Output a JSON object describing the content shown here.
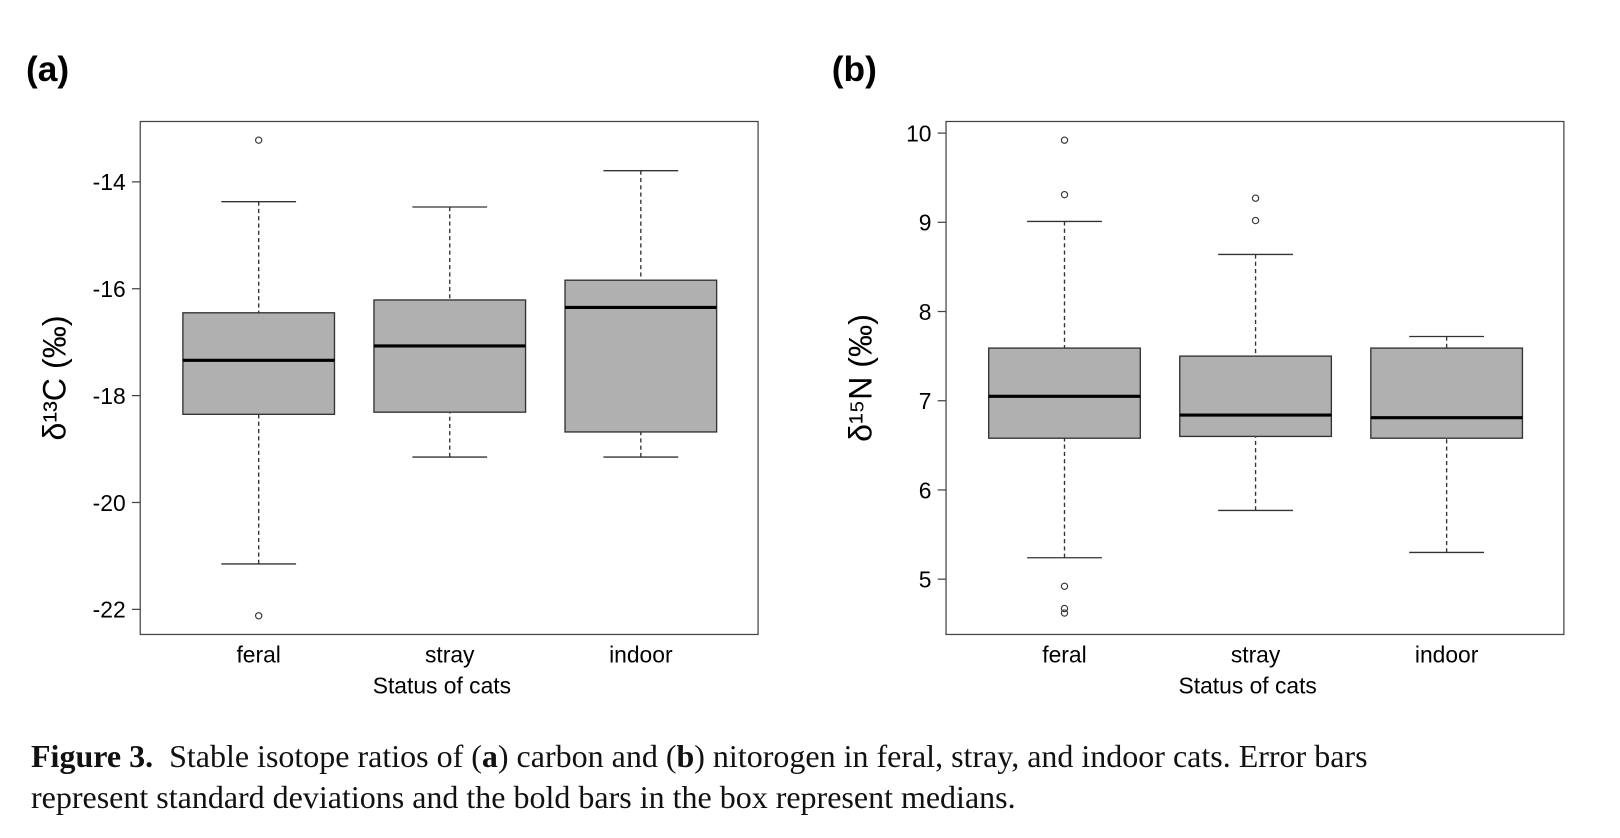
{
  "chart_data": [
    {
      "type": "box",
      "panel": "(a)",
      "ylabel": "δ¹³C (‰)",
      "xlabel": "Status of cats",
      "categories": [
        "feral",
        "stray",
        "indoor"
      ],
      "color": "#b0b0b0",
      "ylim": [
        -22.47,
        -12.87
      ],
      "yticks": [
        -14,
        -16,
        -18,
        -20,
        -22
      ],
      "boxes": [
        {
          "whisker_low": -21.15,
          "q1": -18.35,
          "median": -17.34,
          "q3": -16.45,
          "whisker_high": -14.37,
          "outliers": [
            -13.22,
            -22.12
          ]
        },
        {
          "whisker_low": -19.15,
          "q1": -18.31,
          "median": -17.07,
          "q3": -16.21,
          "whisker_high": -14.47,
          "outliers": []
        },
        {
          "whisker_low": -19.15,
          "q1": -18.68,
          "median": -16.35,
          "q3": -15.84,
          "whisker_high": -13.79,
          "outliers": []
        }
      ]
    },
    {
      "type": "box",
      "panel": "(b)",
      "ylabel": "δ¹⁵N (‰)",
      "xlabel": "Status of cats",
      "categories": [
        "feral",
        "stray",
        "indoor"
      ],
      "color": "#b0b0b0",
      "ylim": [
        4.38,
        10.13
      ],
      "yticks": [
        5,
        6,
        7,
        8,
        9,
        10
      ],
      "boxes": [
        {
          "whisker_low": 5.24,
          "q1": 6.58,
          "median": 7.05,
          "q3": 7.59,
          "whisker_high": 9.01,
          "outliers": [
            9.92,
            9.31,
            4.92,
            4.67,
            4.62
          ]
        },
        {
          "whisker_low": 5.77,
          "q1": 6.6,
          "median": 6.84,
          "q3": 7.5,
          "whisker_high": 8.64,
          "outliers": [
            9.27,
            9.02
          ]
        },
        {
          "whisker_low": 5.3,
          "q1": 6.58,
          "median": 6.81,
          "q3": 7.59,
          "whisker_high": 7.72,
          "outliers": []
        }
      ]
    }
  ],
  "caption": {
    "label": "Figure 3.",
    "parts": [
      "Stable isotope ratios of (",
      "a",
      ") carbon and (",
      "b",
      ") nitorogen in feral, stray, and indoor cats. Error bars",
      "represent standard deviations and the bold bars in the box represent medians."
    ]
  }
}
